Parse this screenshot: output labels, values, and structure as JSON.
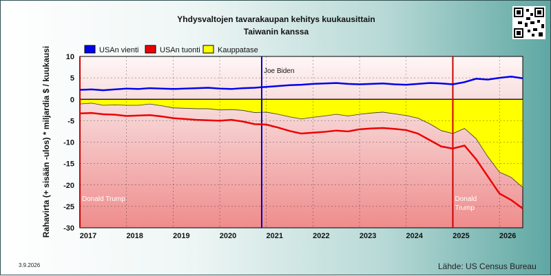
{
  "title": "Yhdysvaltojen tavarakaupan kehitys kuukausittain",
  "subtitle": "Taiwanin kanssa",
  "date": "3.9.2026",
  "source": "Lähde: US Census Bureau",
  "chart_data": {
    "type": "line",
    "title": "Yhdysvaltojen tavarakaupan kehitys kuukausittain",
    "subtitle": "Taiwanin kanssa",
    "ylabel": "Rahavirta (+ sisään -ulos) * miljardia $ / kuukausi",
    "xlabel": "",
    "ylim": [
      -30,
      10
    ],
    "yticks": [
      "10",
      "5",
      "0",
      "-5",
      "-10",
      "-15",
      "-20",
      "-25",
      "-30"
    ],
    "xlim": [
      2017.0,
      2026.5
    ],
    "xticks": [
      "2017",
      "2018",
      "2019",
      "2020",
      "2021",
      "2022",
      "2023",
      "2024",
      "2025",
      "2026"
    ],
    "grid": true,
    "legend": "top-left",
    "colors": {
      "exports": "#0000ee",
      "imports": "#ee0000",
      "balance": "#ffff00"
    },
    "annotations": [
      {
        "label": "Joe Biden",
        "x": 2020.9,
        "color": "#0000cc"
      },
      {
        "label": "Donald Trump",
        "x": 2017.0,
        "color": "#cc0000"
      },
      {
        "label": "Donald\nTrump",
        "x": 2025.0,
        "color": "#cc0000"
      }
    ],
    "series": [
      {
        "name": "USAn vienti",
        "x": [
          2017.0,
          2017.25,
          2017.5,
          2017.75,
          2018.0,
          2018.25,
          2018.5,
          2018.75,
          2019.0,
          2019.25,
          2019.5,
          2019.75,
          2020.0,
          2020.25,
          2020.5,
          2020.75,
          2021.0,
          2021.25,
          2021.5,
          2021.75,
          2022.0,
          2022.25,
          2022.5,
          2022.75,
          2023.0,
          2023.25,
          2023.5,
          2023.75,
          2024.0,
          2024.25,
          2024.5,
          2024.75,
          2025.0,
          2025.25,
          2025.5,
          2025.75,
          2026.0,
          2026.25,
          2026.5
        ],
        "values": [
          2.2,
          2.3,
          2.1,
          2.3,
          2.5,
          2.4,
          2.6,
          2.5,
          2.4,
          2.5,
          2.6,
          2.7,
          2.5,
          2.4,
          2.6,
          2.7,
          2.9,
          3.1,
          3.3,
          3.4,
          3.6,
          3.7,
          3.8,
          3.6,
          3.5,
          3.6,
          3.7,
          3.5,
          3.4,
          3.6,
          3.8,
          3.7,
          3.5,
          4.0,
          4.8,
          4.6,
          5.0,
          5.3,
          4.9
        ]
      },
      {
        "name": "USAn tuonti",
        "x": [
          2017.0,
          2017.25,
          2017.5,
          2017.75,
          2018.0,
          2018.25,
          2018.5,
          2018.75,
          2019.0,
          2019.25,
          2019.5,
          2019.75,
          2020.0,
          2020.25,
          2020.5,
          2020.75,
          2021.0,
          2021.25,
          2021.5,
          2021.75,
          2022.0,
          2022.25,
          2022.5,
          2022.75,
          2023.0,
          2023.25,
          2023.5,
          2023.75,
          2024.0,
          2024.25,
          2024.5,
          2024.75,
          2025.0,
          2025.25,
          2025.5,
          2025.75,
          2026.0,
          2026.25,
          2026.5
        ],
        "values": [
          -3.3,
          -3.2,
          -3.5,
          -3.6,
          -3.9,
          -3.8,
          -3.7,
          -4.0,
          -4.4,
          -4.6,
          -4.8,
          -4.9,
          -5.0,
          -4.8,
          -5.2,
          -5.8,
          -5.9,
          -6.6,
          -7.4,
          -8.0,
          -7.8,
          -7.6,
          -7.3,
          -7.5,
          -7.0,
          -6.8,
          -6.7,
          -6.9,
          -7.2,
          -8.0,
          -9.5,
          -11.0,
          -11.5,
          -10.8,
          -14.0,
          -18.0,
          -22.0,
          -23.5,
          -25.5
        ]
      },
      {
        "name": "Kauppatase",
        "x": [
          2017.0,
          2017.25,
          2017.5,
          2017.75,
          2018.0,
          2018.25,
          2018.5,
          2018.75,
          2019.0,
          2019.25,
          2019.5,
          2019.75,
          2020.0,
          2020.25,
          2020.5,
          2020.75,
          2021.0,
          2021.25,
          2021.5,
          2021.75,
          2022.0,
          2022.25,
          2022.5,
          2022.75,
          2023.0,
          2023.25,
          2023.5,
          2023.75,
          2024.0,
          2024.25,
          2024.5,
          2024.75,
          2025.0,
          2025.25,
          2025.5,
          2025.75,
          2026.0,
          2026.25,
          2026.5
        ],
        "values": [
          -1.1,
          -0.9,
          -1.4,
          -1.3,
          -1.4,
          -1.4,
          -1.1,
          -1.5,
          -2.0,
          -2.1,
          -2.2,
          -2.2,
          -2.5,
          -2.4,
          -2.6,
          -3.1,
          -3.0,
          -3.5,
          -4.1,
          -4.6,
          -4.2,
          -3.9,
          -3.5,
          -3.9,
          -3.5,
          -3.2,
          -3.0,
          -3.4,
          -3.8,
          -4.4,
          -5.7,
          -7.3,
          -8.0,
          -6.8,
          -9.2,
          -13.4,
          -17.0,
          -18.2,
          -20.6
        ]
      }
    ]
  }
}
